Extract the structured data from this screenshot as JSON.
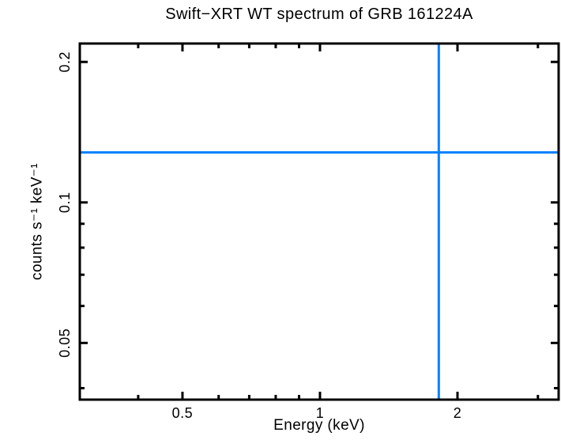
{
  "chart_data": {
    "type": "line",
    "title": "Swift−XRT WT spectrum of GRB 161224A",
    "xlabel": "Energy (keV)",
    "ylabel": "counts s⁻¹ keV⁻¹",
    "xscale": "log",
    "yscale": "log",
    "xlim": [
      0.298,
      3.33
    ],
    "ylim": [
      0.0378,
      0.219
    ],
    "grid": false,
    "legend": null,
    "x_ticks": {
      "major": [
        {
          "value": 0.5,
          "label": "0.5"
        },
        {
          "value": 1,
          "label": "1"
        },
        {
          "value": 2,
          "label": "2"
        }
      ],
      "minor": [
        0.4,
        0.6,
        0.7,
        0.8,
        0.9,
        3
      ]
    },
    "y_ticks": {
      "major": [
        {
          "value": 0.2,
          "label": "0.2"
        },
        {
          "value": 0.1,
          "label": "0.1"
        },
        {
          "value": 0.05,
          "label": "0.05"
        }
      ],
      "minor": [
        0.09,
        0.08,
        0.07,
        0.06,
        0.04
      ]
    },
    "series": [
      {
        "name": "WT spectrum data point",
        "points": [
          {
            "x": 1.82,
            "y": 0.128
          }
        ],
        "style": "crosshair lines spanning full plot range",
        "color": "#0080ff"
      }
    ],
    "crosshair": {
      "x": 1.82,
      "y": 0.128
    },
    "colors": {
      "axis": "#000000",
      "text": "#000000",
      "data": "#0080ff",
      "background": "#ffffff"
    }
  }
}
